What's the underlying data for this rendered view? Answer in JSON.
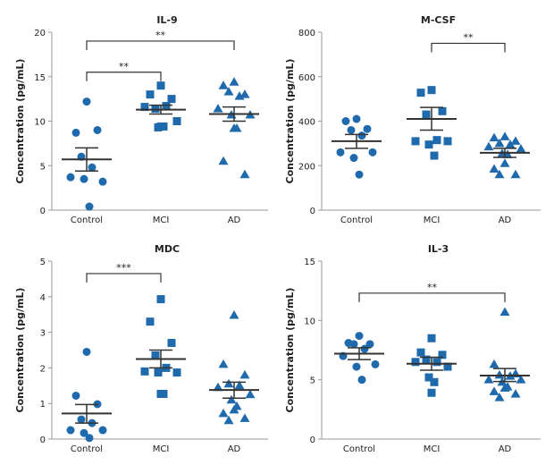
{
  "chart_data": [
    {
      "type": "scatter",
      "title": "IL-9",
      "ylabel": "Concentration (pg/mL)",
      "categories": [
        "Control",
        "MCI",
        "AD"
      ],
      "ylim": [
        0,
        20
      ],
      "yticks": [
        "0",
        "5",
        "10",
        "15",
        "20"
      ],
      "groups": [
        {
          "name": "Control",
          "marker": "circle",
          "values": [
            12.2,
            8.7,
            9.0,
            6.0,
            4.8,
            3.7,
            3.2,
            3.5,
            0.4
          ],
          "mean": 5.7,
          "sem_low": 4.4,
          "sem_high": 7.0
        },
        {
          "name": "MCI",
          "marker": "square",
          "values": [
            14.0,
            13.0,
            12.5,
            11.4,
            11.7,
            11.6,
            10.0,
            9.3,
            9.4,
            9.4
          ],
          "mean": 11.3,
          "sem_low": 10.8,
          "sem_high": 11.8
        },
        {
          "name": "AD",
          "marker": "triangle",
          "values": [
            14.4,
            14.0,
            13.0,
            13.3,
            12.8,
            11.4,
            10.7,
            10.7,
            9.2,
            9.2,
            5.5,
            4.0
          ],
          "mean": 10.8,
          "sem_low": 10.0,
          "sem_high": 11.6
        }
      ],
      "significance": [
        {
          "from": "Control",
          "to": "MCI",
          "y": 15.5,
          "label": "**"
        },
        {
          "from": "Control",
          "to": "AD",
          "y": 19.0,
          "label": "**"
        }
      ]
    },
    {
      "type": "scatter",
      "title": "M-CSF",
      "ylabel": "Concentration (pg/mL)",
      "categories": [
        "Control",
        "MCI",
        "AD"
      ],
      "ylim": [
        0,
        800
      ],
      "yticks": [
        "0",
        "200",
        "400",
        "600",
        "800"
      ],
      "groups": [
        {
          "name": "Control",
          "marker": "circle",
          "values": [
            410,
            400,
            365,
            360,
            335,
            260,
            260,
            235,
            160
          ],
          "mean": 310,
          "sem_low": 278,
          "sem_high": 340
        },
        {
          "name": "MCI",
          "marker": "square",
          "values": [
            540,
            528,
            445,
            430,
            315,
            310,
            310,
            295,
            245
          ],
          "mean": 410,
          "sem_low": 360,
          "sem_high": 462
        },
        {
          "name": "AD",
          "marker": "triangle",
          "values": [
            330,
            325,
            310,
            300,
            295,
            285,
            275,
            255,
            250,
            210,
            185,
            160,
            160
          ],
          "mean": 258,
          "sem_low": 237,
          "sem_high": 278
        }
      ],
      "significance": [
        {
          "from": "MCI",
          "to": "AD",
          "y": 750,
          "label": "**"
        }
      ]
    },
    {
      "type": "scatter",
      "title": "MDC",
      "ylabel": "Concentration (pg/mL)",
      "categories": [
        "Control",
        "MCI",
        "AD"
      ],
      "ylim": [
        0,
        5
      ],
      "yticks": [
        "0",
        "1",
        "2",
        "3",
        "4",
        "5"
      ],
      "groups": [
        {
          "name": "Control",
          "marker": "circle",
          "values": [
            2.45,
            1.22,
            0.98,
            0.55,
            0.45,
            0.25,
            0.25,
            0.17,
            0.03
          ],
          "mean": 0.72,
          "sem_low": 0.45,
          "sem_high": 0.97
        },
        {
          "name": "MCI",
          "marker": "square",
          "values": [
            3.93,
            3.3,
            2.7,
            2.35,
            2.0,
            1.9,
            1.87,
            1.87,
            1.27,
            1.27
          ],
          "mean": 2.25,
          "sem_low": 2.0,
          "sem_high": 2.5
        },
        {
          "name": "AD",
          "marker": "triangle",
          "values": [
            3.48,
            2.1,
            1.8,
            1.55,
            1.5,
            1.45,
            1.25,
            1.1,
            0.92,
            0.82,
            0.72,
            0.58,
            0.52
          ],
          "mean": 1.38,
          "sem_low": 1.15,
          "sem_high": 1.6
        }
      ],
      "significance": [
        {
          "from": "Control",
          "to": "MCI",
          "y": 4.65,
          "label": "***"
        }
      ]
    },
    {
      "type": "scatter",
      "title": "IL-3",
      "ylabel": "Concentration (pg/mL)",
      "categories": [
        "Control",
        "MCI",
        "AD"
      ],
      "ylim": [
        0,
        15
      ],
      "yticks": [
        "0",
        "5",
        "10",
        "15"
      ],
      "groups": [
        {
          "name": "Control",
          "marker": "circle",
          "values": [
            8.7,
            8.1,
            8.0,
            8.0,
            7.6,
            7.0,
            6.3,
            6.1,
            5.0
          ],
          "mean": 7.2,
          "sem_low": 6.7,
          "sem_high": 7.7
        },
        {
          "name": "MCI",
          "marker": "square",
          "values": [
            8.5,
            7.3,
            7.1,
            6.7,
            6.5,
            6.5,
            6.1,
            5.2,
            4.8,
            3.9
          ],
          "mean": 6.35,
          "sem_low": 5.8,
          "sem_high": 6.9
        },
        {
          "name": "AD",
          "marker": "triangle",
          "values": [
            10.7,
            6.3,
            5.5,
            5.4,
            5.3,
            5.0,
            5.0,
            4.8,
            4.4,
            4.3,
            4.0,
            3.8,
            3.5
          ],
          "mean": 5.35,
          "sem_low": 4.85,
          "sem_high": 5.95
        }
      ],
      "significance": [
        {
          "from": "Control",
          "to": "AD",
          "y": 12.3,
          "label": "**"
        }
      ]
    }
  ],
  "colors": {
    "marker": "#1f6aad",
    "axis": "#999999",
    "lines": "#333333"
  }
}
